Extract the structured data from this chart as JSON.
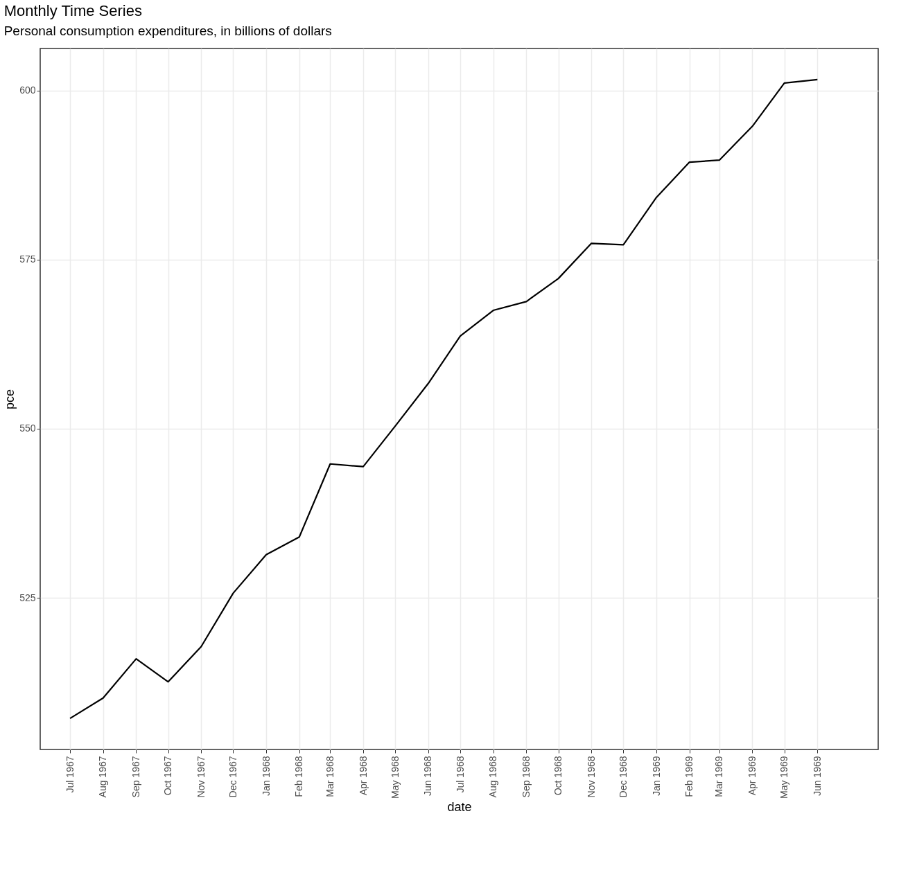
{
  "chart_data": {
    "type": "line",
    "title": "Monthly Time Series",
    "subtitle": "Personal consumption expenditures, in billions of dollars",
    "xlabel": "date",
    "ylabel": "pce",
    "x": [
      "1967-07",
      "1967-08",
      "1967-09",
      "1967-10",
      "1967-11",
      "1967-12",
      "1968-01",
      "1968-02",
      "1968-03",
      "1968-04",
      "1968-05",
      "1968-06",
      "1968-07",
      "1968-08",
      "1968-09",
      "1968-10",
      "1968-11",
      "1968-12",
      "1969-01",
      "1969-02",
      "1969-03",
      "1969-04",
      "1969-05",
      "1969-06"
    ],
    "series": [
      {
        "color": "#000000",
        "values": [
          507.2,
          510.2,
          516.0,
          512.6,
          517.8,
          525.7,
          531.4,
          534.0,
          544.8,
          544.4,
          550.4,
          556.7,
          563.7,
          567.5,
          568.8,
          572.2,
          577.4,
          577.2,
          584.2,
          589.4,
          589.7,
          594.7,
          601.1,
          601.6
        ]
      }
    ],
    "xlim": [
      "1967-06-03",
      "1969-07-28"
    ],
    "xticks": [
      {
        "value": "1967-07",
        "label": "Jul 1967"
      },
      {
        "value": "1967-08",
        "label": "Aug 1967"
      },
      {
        "value": "1967-09",
        "label": "Sep 1967"
      },
      {
        "value": "1967-10",
        "label": "Oct 1967"
      },
      {
        "value": "1967-11",
        "label": "Nov 1967"
      },
      {
        "value": "1967-12",
        "label": "Dec 1967"
      },
      {
        "value": "1968-01",
        "label": "Jan 1968"
      },
      {
        "value": "1968-02",
        "label": "Feb 1968"
      },
      {
        "value": "1968-03",
        "label": "Mar 1968"
      },
      {
        "value": "1968-04",
        "label": "Apr 1968"
      },
      {
        "value": "1968-05",
        "label": "May 1968"
      },
      {
        "value": "1968-06",
        "label": "Jun 1968"
      },
      {
        "value": "1968-07",
        "label": "Jul 1968"
      },
      {
        "value": "1968-08",
        "label": "Aug 1968"
      },
      {
        "value": "1968-09",
        "label": "Sep 1968"
      },
      {
        "value": "1968-10",
        "label": "Oct 1968"
      },
      {
        "value": "1968-11",
        "label": "Nov 1968"
      },
      {
        "value": "1968-12",
        "label": "Dec 1968"
      },
      {
        "value": "1969-01",
        "label": "Jan 1969"
      },
      {
        "value": "1969-02",
        "label": "Feb 1969"
      },
      {
        "value": "1969-03",
        "label": "Mar 1969"
      },
      {
        "value": "1969-04",
        "label": "Apr 1969"
      },
      {
        "value": "1969-05",
        "label": "May 1969"
      },
      {
        "value": "1969-06",
        "label": "Jun 1969"
      }
    ],
    "ylim": [
      502.6,
      606.2
    ],
    "yticks": [
      525,
      550,
      575,
      600
    ],
    "grid": true,
    "line_style": "solid",
    "marker": "none"
  }
}
